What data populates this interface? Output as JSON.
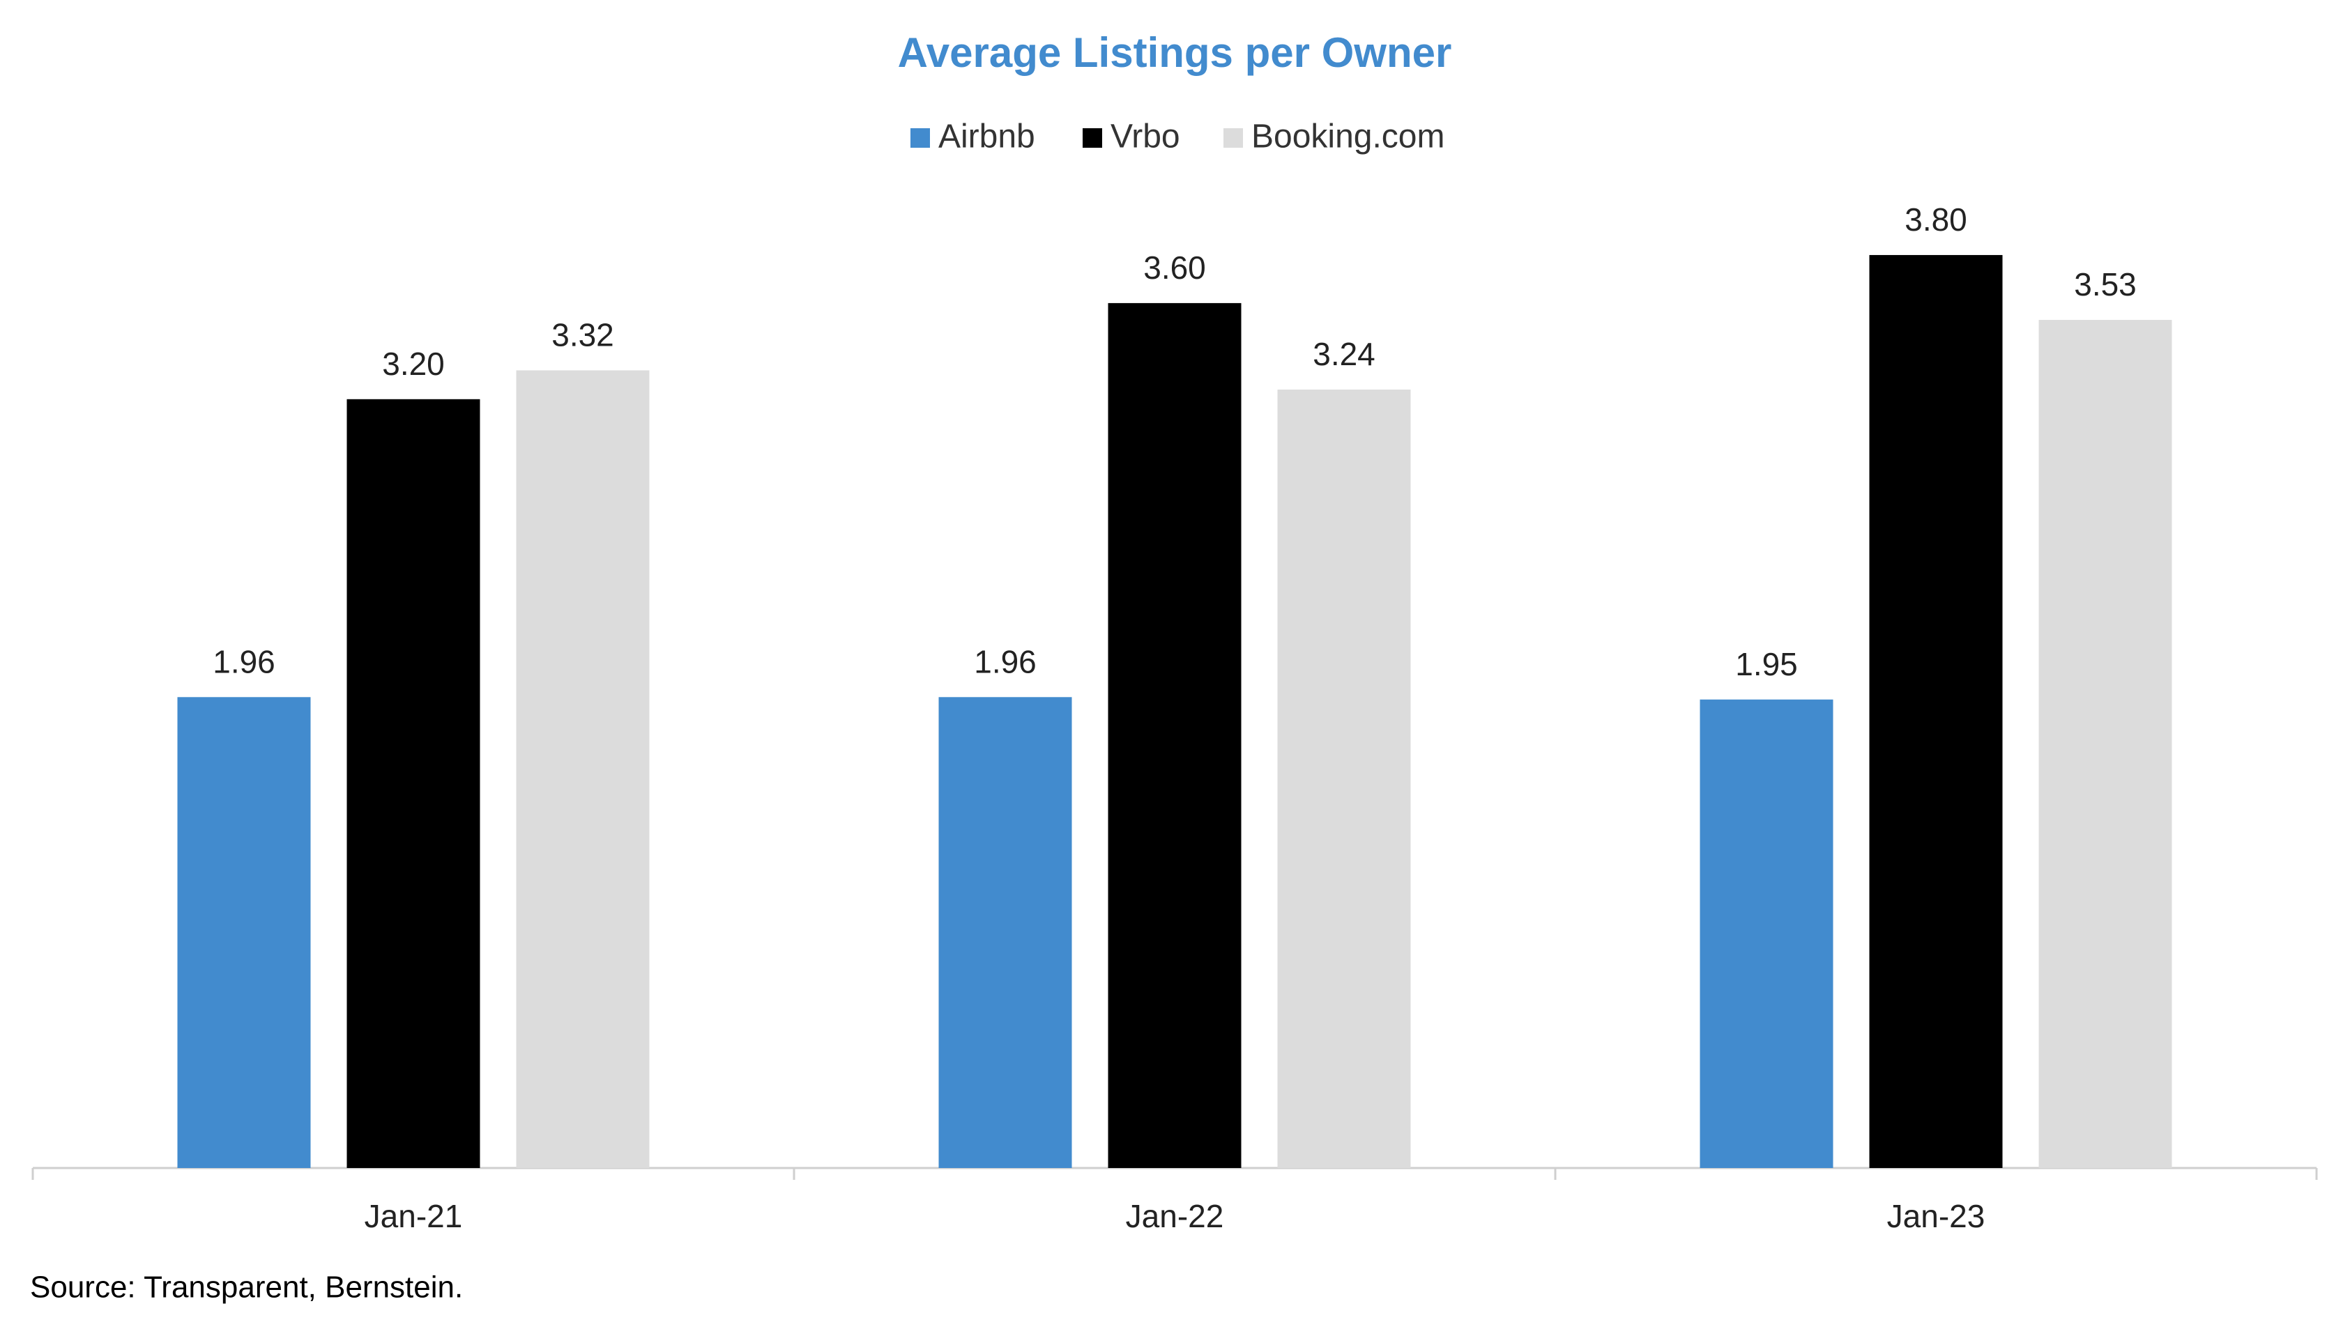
{
  "chart_data": {
    "type": "bar",
    "title": "Average Listings per Owner",
    "categories": [
      "Jan-21",
      "Jan-22",
      "Jan-23"
    ],
    "series": [
      {
        "name": "Airbnb",
        "color": "#428bce",
        "values": [
          1.96,
          1.96,
          1.95
        ],
        "value_labels": [
          "1.96",
          "1.96",
          "1.95"
        ]
      },
      {
        "name": "Vrbo",
        "color": "#000000",
        "values": [
          3.2,
          3.6,
          3.8
        ],
        "value_labels": [
          "3.20",
          "3.60",
          "3.80"
        ]
      },
      {
        "name": "Booking.com",
        "color": "#dcdcdc",
        "values": [
          3.32,
          3.24,
          3.53
        ],
        "value_labels": [
          "3.32",
          "3.24",
          "3.53"
        ]
      }
    ],
    "ylim": [
      0,
      4
    ],
    "legend": "top",
    "source": "Source: Transparent, Bernstein."
  }
}
